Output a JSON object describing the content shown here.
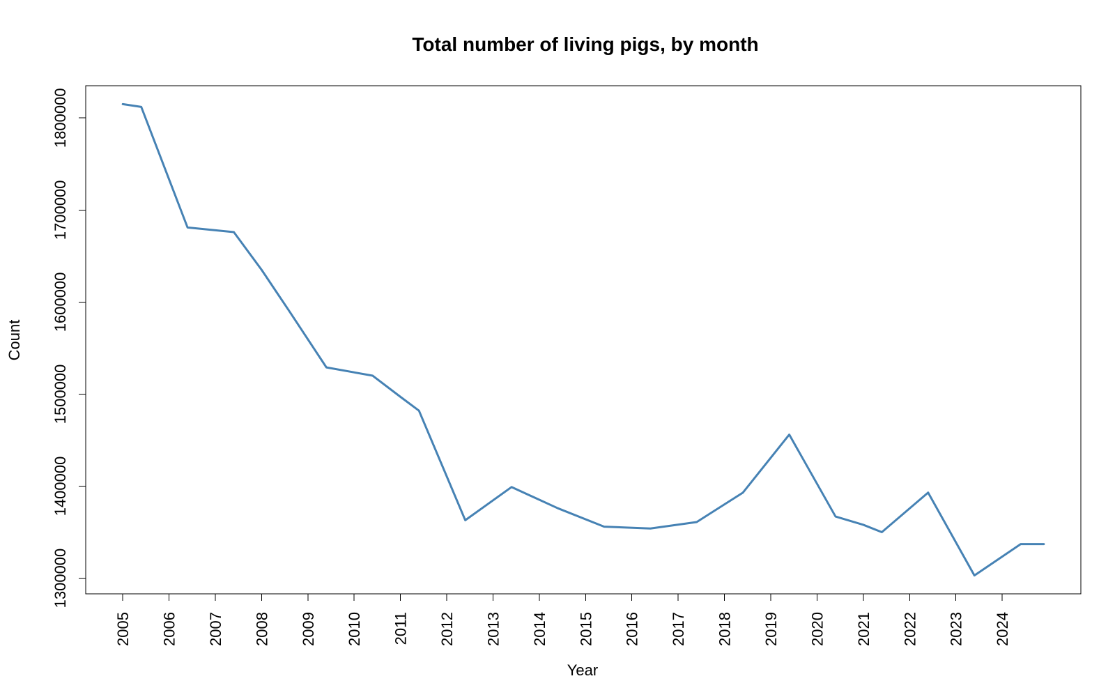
{
  "chart_data": {
    "type": "line",
    "title": "Total number of living pigs, by month",
    "xlabel": "Year",
    "ylabel": "Count",
    "x_ticks": [
      "2005",
      "2006",
      "2007",
      "2008",
      "2009",
      "2010",
      "2011",
      "2012",
      "2013",
      "2014",
      "2015",
      "2016",
      "2017",
      "2018",
      "2019",
      "2020",
      "2021",
      "2022",
      "2023",
      "2024"
    ],
    "y_ticks": [
      1300000,
      1400000,
      1500000,
      1600000,
      1700000,
      1800000
    ],
    "xlim": [
      2004.2,
      2025.7
    ],
    "ylim": [
      1283000,
      1835000
    ],
    "grid": false,
    "legend": "none",
    "series": [
      {
        "color": "#4682B4",
        "points": [
          {
            "x": 2005.0,
            "y": 1815000
          },
          {
            "x": 2005.4,
            "y": 1812000
          },
          {
            "x": 2006.4,
            "y": 1681000
          },
          {
            "x": 2007.4,
            "y": 1676000
          },
          {
            "x": 2008.0,
            "y": 1635000
          },
          {
            "x": 2008.6,
            "y": 1590000
          },
          {
            "x": 2009.4,
            "y": 1529000
          },
          {
            "x": 2010.4,
            "y": 1520000
          },
          {
            "x": 2011.0,
            "y": 1497000
          },
          {
            "x": 2011.4,
            "y": 1482000
          },
          {
            "x": 2012.4,
            "y": 1363000
          },
          {
            "x": 2013.4,
            "y": 1399000
          },
          {
            "x": 2014.4,
            "y": 1376000
          },
          {
            "x": 2015.4,
            "y": 1356000
          },
          {
            "x": 2016.4,
            "y": 1354000
          },
          {
            "x": 2017.4,
            "y": 1361000
          },
          {
            "x": 2018.4,
            "y": 1393000
          },
          {
            "x": 2019.4,
            "y": 1456000
          },
          {
            "x": 2020.4,
            "y": 1367000
          },
          {
            "x": 2021.0,
            "y": 1358000
          },
          {
            "x": 2021.4,
            "y": 1350000
          },
          {
            "x": 2022.4,
            "y": 1393000
          },
          {
            "x": 2023.4,
            "y": 1303000
          },
          {
            "x": 2024.4,
            "y": 1337000
          },
          {
            "x": 2024.9,
            "y": 1337000
          }
        ]
      }
    ]
  }
}
